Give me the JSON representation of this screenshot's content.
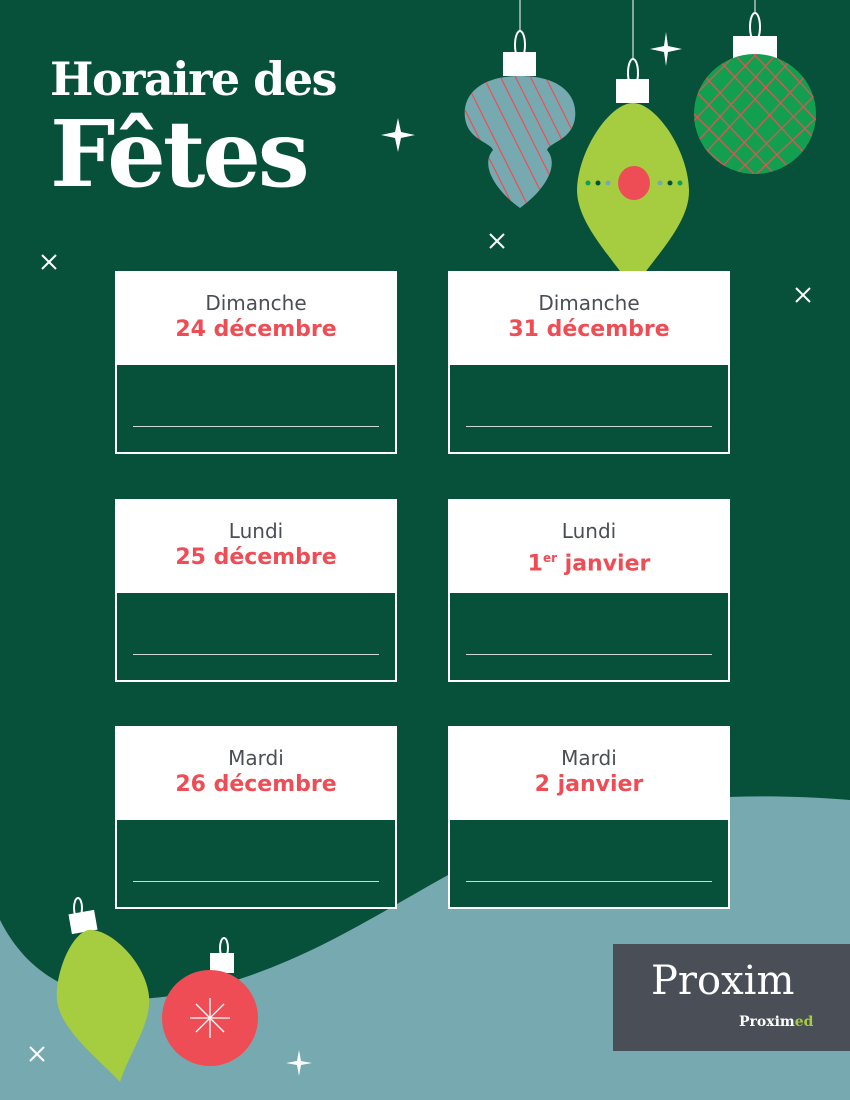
{
  "title": {
    "line1": "Horaire des",
    "line2": "Fêtes"
  },
  "colors": {
    "background": "#07513a",
    "accent_red": "#ef4d55",
    "lime": "#a6cd3f",
    "teal": "#76aab0",
    "logo_bg": "#4a4f57"
  },
  "schedule": [
    {
      "day": "Dimanche",
      "date": "24 décembre",
      "hours": ""
    },
    {
      "day": "Dimanche",
      "date": "31 décembre",
      "hours": ""
    },
    {
      "day": "Lundi",
      "date": "25 décembre",
      "hours": ""
    },
    {
      "day": "Lundi",
      "date_num": "1",
      "date_sup": "er",
      "date_rest": " janvier",
      "hours": ""
    },
    {
      "day": "Mardi",
      "date": "26 décembre",
      "hours": ""
    },
    {
      "day": "Mardi",
      "date": "2 janvier",
      "hours": ""
    }
  ],
  "logo": {
    "main": "Proxim",
    "sub": "Proximed",
    "sub_a": "Proxim",
    "sub_b": "ed"
  }
}
